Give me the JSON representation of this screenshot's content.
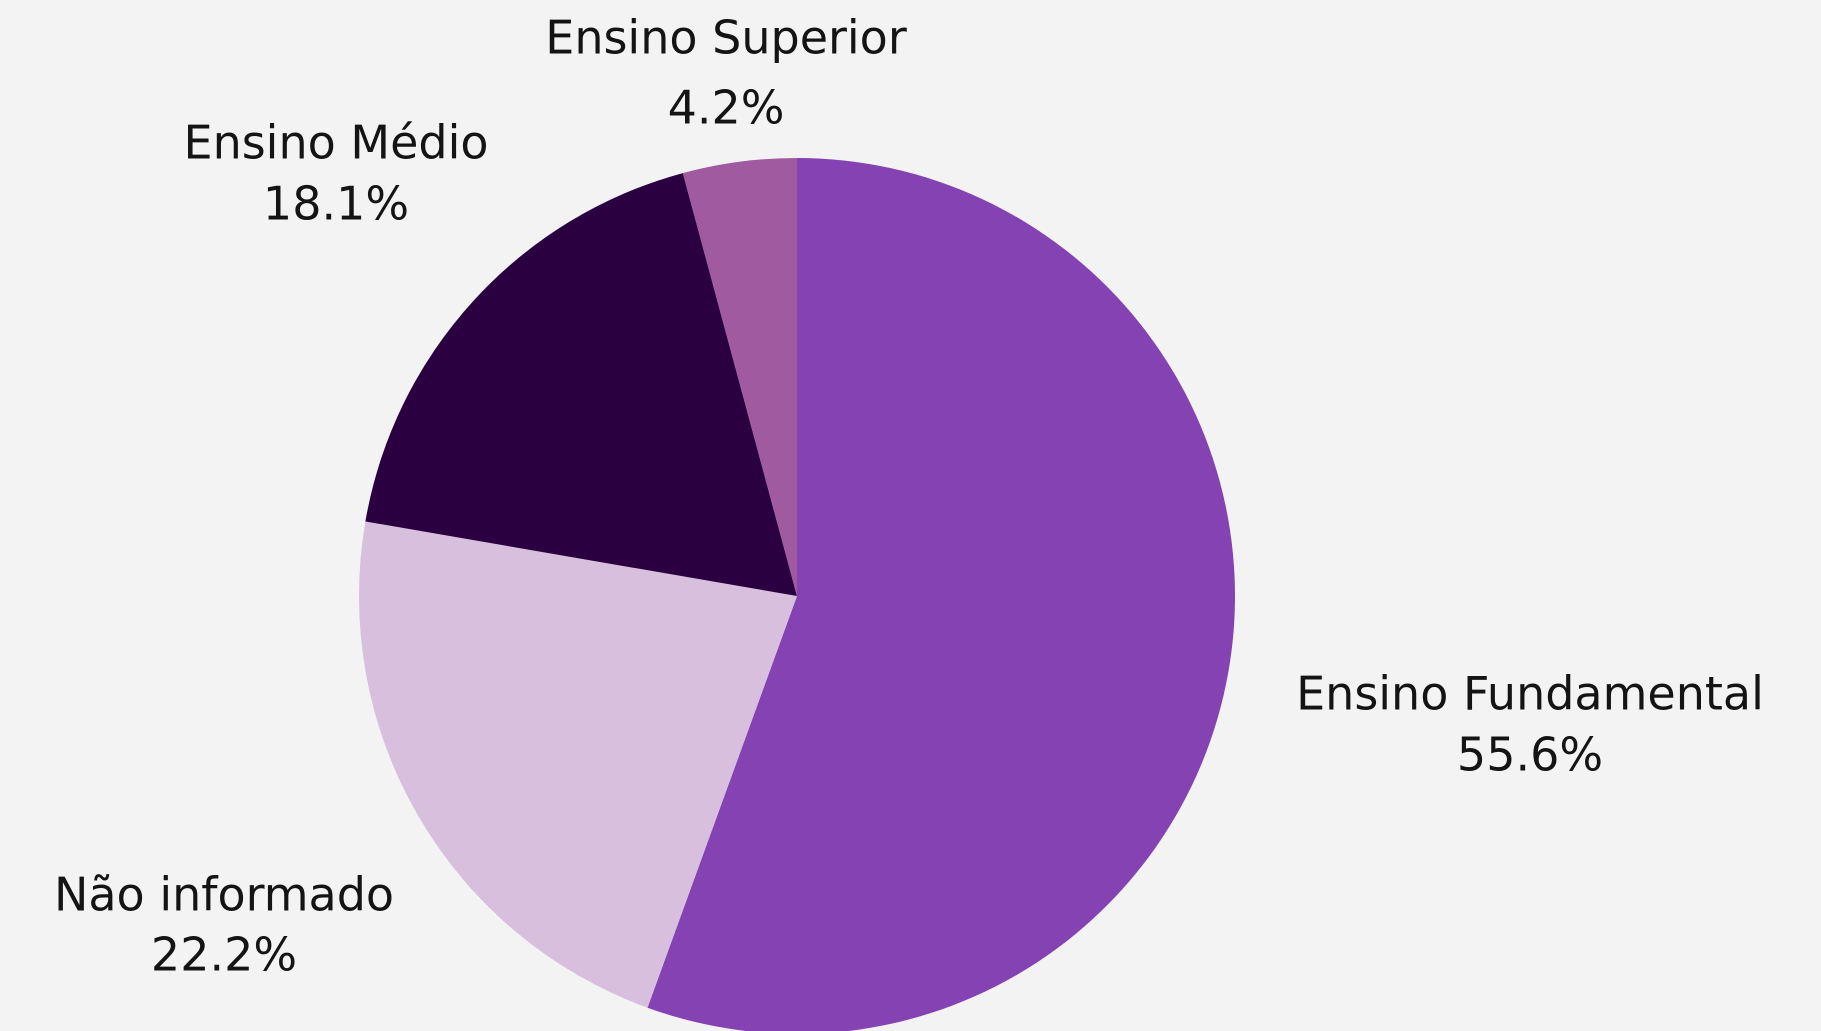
{
  "chart_data": {
    "type": "pie",
    "categories": [
      "Ensino Fundamental",
      "Não informado",
      "Ensino Médio",
      "Ensino Superior"
    ],
    "values": [
      55.6,
      22.2,
      18.1,
      4.2
    ],
    "value_labels": [
      "55.6%",
      "22.2%",
      "18.1%",
      "4.2%"
    ],
    "colors": [
      "#8442b3",
      "#d8bfdd",
      "#2a0040",
      "#a05aa0"
    ]
  }
}
